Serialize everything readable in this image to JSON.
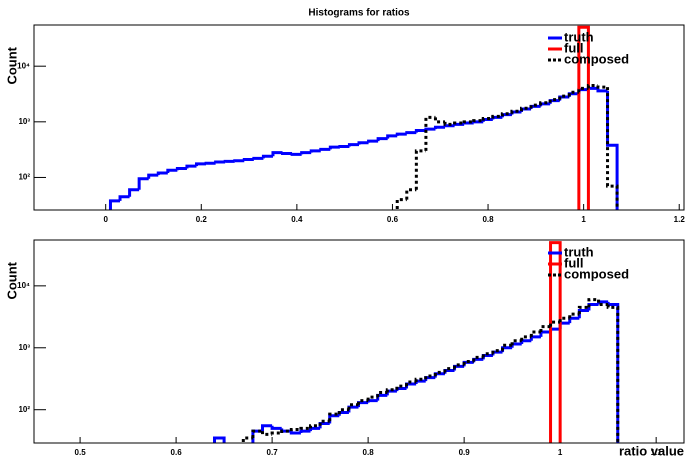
{
  "chart_data": [
    {
      "type": "histogram",
      "title": "Histograms for ratios",
      "y_label": "Count",
      "yscale": "log",
      "legend": "upper right",
      "bins": [
        0.01,
        0.03,
        0.05,
        0.07,
        0.09,
        0.11,
        0.13,
        0.15,
        0.17,
        0.19,
        0.21,
        0.23,
        0.25,
        0.27,
        0.29,
        0.31,
        0.33,
        0.35,
        0.37,
        0.39,
        0.41,
        0.43,
        0.45,
        0.47,
        0.49,
        0.51,
        0.53,
        0.55,
        0.57,
        0.59,
        0.61,
        0.63,
        0.65,
        0.67,
        0.69,
        0.71,
        0.73,
        0.75,
        0.77,
        0.79,
        0.81,
        0.83,
        0.85,
        0.87,
        0.89,
        0.91,
        0.93,
        0.95,
        0.97,
        0.99,
        1.01,
        1.03,
        1.05,
        1.07
      ],
      "series": [
        {
          "name": "truth",
          "color": "#0000ff",
          "line_style": "solid",
          "values": [
            38,
            45,
            60,
            95,
            110,
            120,
            135,
            145,
            160,
            175,
            180,
            190,
            195,
            200,
            210,
            220,
            240,
            280,
            270,
            260,
            280,
            300,
            320,
            350,
            360,
            390,
            420,
            450,
            500,
            560,
            600,
            640,
            700,
            740,
            800,
            850,
            900,
            950,
            1000,
            1100,
            1200,
            1350,
            1500,
            1700,
            1900,
            2100,
            2400,
            2800,
            3200,
            3800,
            4000,
            3600,
            380
          ]
        },
        {
          "name": "full",
          "color": "#ff0000",
          "line_style": "solid",
          "values": [
            null,
            null,
            null,
            null,
            null,
            null,
            null,
            null,
            null,
            null,
            null,
            null,
            null,
            null,
            null,
            null,
            null,
            null,
            null,
            null,
            null,
            null,
            null,
            null,
            null,
            null,
            null,
            null,
            null,
            null,
            null,
            null,
            null,
            null,
            null,
            null,
            null,
            null,
            null,
            null,
            null,
            null,
            null,
            null,
            null,
            null,
            null,
            null,
            null,
            50000,
            null,
            null,
            null
          ]
        },
        {
          "name": "composed",
          "color": "#000000",
          "line_style": "dotted",
          "values": [
            null,
            null,
            null,
            null,
            null,
            null,
            null,
            null,
            null,
            null,
            null,
            null,
            null,
            null,
            null,
            null,
            null,
            null,
            null,
            null,
            null,
            null,
            null,
            null,
            null,
            null,
            null,
            null,
            null,
            null,
            40,
            60,
            300,
            1200,
            1000,
            900,
            950,
            1000,
            1050,
            1150,
            1250,
            1400,
            1550,
            1750,
            2000,
            2200,
            2500,
            2900,
            3400,
            4000,
            4500,
            4200,
            70
          ]
        }
      ],
      "xlim": [
        -0.15,
        1.21
      ],
      "xticks": [
        0,
        0.2,
        0.4,
        0.6,
        0.8,
        1,
        1.2
      ],
      "ylim": [
        26,
        55000
      ],
      "yticks": [
        {
          "value": 100,
          "label": "10²"
        },
        {
          "value": 1000,
          "label": "10³"
        },
        {
          "value": 10000,
          "label": "10⁴"
        }
      ]
    },
    {
      "type": "histogram",
      "x_label": "ratio value",
      "y_label": "Count",
      "yscale": "log",
      "legend": "upper right",
      "bins": [
        0.64,
        0.65,
        0.66,
        0.67,
        0.68,
        0.69,
        0.7,
        0.71,
        0.72,
        0.73,
        0.74,
        0.75,
        0.76,
        0.77,
        0.78,
        0.79,
        0.8,
        0.81,
        0.82,
        0.83,
        0.84,
        0.85,
        0.86,
        0.87,
        0.88,
        0.89,
        0.9,
        0.91,
        0.92,
        0.93,
        0.94,
        0.95,
        0.96,
        0.97,
        0.98,
        0.99,
        1.0,
        1.01,
        1.02,
        1.03,
        1.04,
        1.05,
        1.06
      ],
      "series": [
        {
          "name": "truth",
          "color": "#0000ff",
          "line_style": "solid",
          "values": [
            35,
            null,
            null,
            null,
            45,
            55,
            50,
            45,
            42,
            45,
            50,
            60,
            80,
            90,
            110,
            130,
            140,
            170,
            200,
            220,
            260,
            290,
            330,
            380,
            430,
            500,
            580,
            650,
            750,
            850,
            1000,
            1150,
            1300,
            1500,
            1800,
            2000,
            2500,
            3000,
            4000,
            5000,
            5500,
            5000
          ]
        },
        {
          "name": "full",
          "color": "#ff0000",
          "line_style": "solid",
          "values": [
            null,
            null,
            null,
            null,
            null,
            null,
            null,
            null,
            null,
            null,
            null,
            null,
            null,
            null,
            null,
            null,
            null,
            null,
            null,
            null,
            null,
            null,
            null,
            null,
            null,
            null,
            null,
            null,
            null,
            null,
            null,
            null,
            null,
            null,
            null,
            50000,
            null,
            null,
            null,
            null,
            null,
            null
          ]
        },
        {
          "name": "composed",
          "color": "#000000",
          "line_style": "dotted",
          "values": [
            null,
            null,
            null,
            35,
            45,
            40,
            42,
            45,
            48,
            50,
            55,
            65,
            85,
            100,
            120,
            140,
            160,
            190,
            210,
            240,
            280,
            310,
            350,
            400,
            460,
            530,
            600,
            700,
            800,
            900,
            1100,
            1300,
            1500,
            1800,
            2200,
            2600,
            3000,
            3500,
            4500,
            6000,
            5000,
            4500
          ]
        }
      ],
      "xlim": [
        0.452,
        1.129
      ],
      "xticks": [
        0.5,
        0.6,
        0.7,
        0.8,
        0.9,
        1,
        1.1
      ],
      "ylim": [
        29,
        55000
      ],
      "yticks": [
        {
          "value": 100,
          "label": "10²"
        },
        {
          "value": 1000,
          "label": "10³"
        },
        {
          "value": 10000,
          "label": "10⁴"
        }
      ]
    }
  ]
}
